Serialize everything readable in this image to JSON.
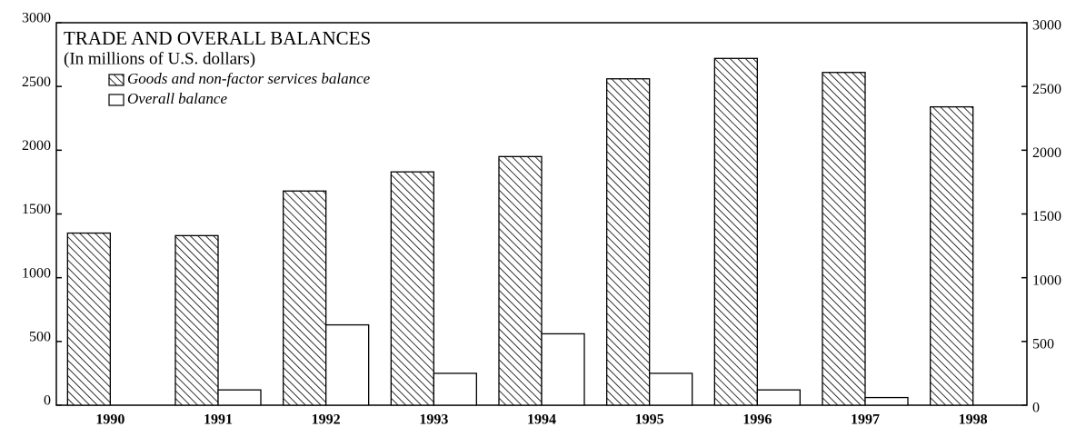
{
  "chart_data": {
    "type": "bar",
    "title": "TRADE AND OVERALL BALANCES",
    "subtitle": "(In millions of U.S. dollars)",
    "categories": [
      "1990",
      "1991",
      "1992",
      "1993",
      "1994",
      "1995",
      "1996",
      "1997",
      "1998"
    ],
    "series": [
      {
        "name": "Goods and non-factor services balance",
        "color": "#000000",
        "hatch": true,
        "values": [
          1350,
          1330,
          1680,
          1830,
          1950,
          2560,
          2720,
          2610,
          2340
        ]
      },
      {
        "name": "Overall balance",
        "color": "#000000",
        "hatch": false,
        "values": [
          0,
          120,
          630,
          250,
          560,
          250,
          120,
          60,
          0
        ]
      }
    ],
    "ylim": [
      0,
      3000
    ],
    "yticks": [
      0,
      500,
      1000,
      1500,
      2000,
      2500,
      3000
    ],
    "y2lim": [
      0,
      3000
    ],
    "y2ticks": [
      0,
      500,
      1000,
      1500,
      2000,
      2500,
      3000
    ],
    "grid": false,
    "legend": "top-left"
  }
}
